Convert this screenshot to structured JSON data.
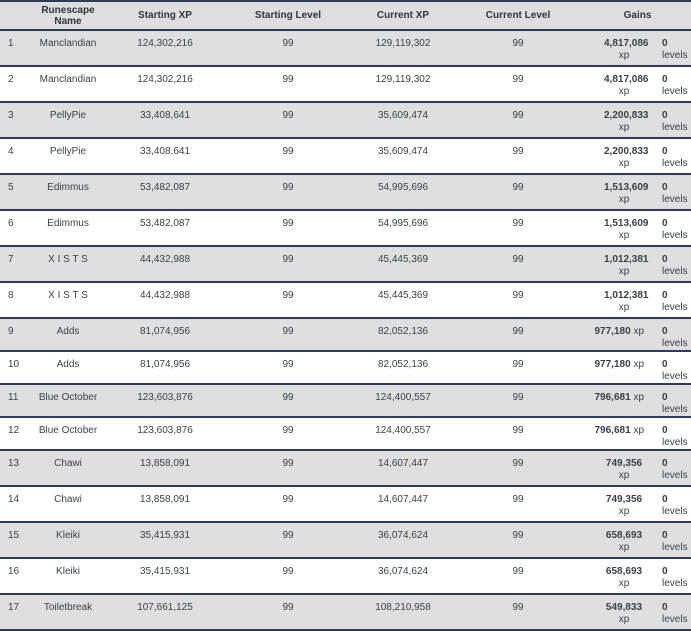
{
  "headers": [
    "",
    "Runescape Name",
    "Starting XP",
    "Starting Level",
    "Current XP",
    "Current Level",
    "Gains"
  ],
  "xp_unit": "xp",
  "levels_unit": "levels",
  "rows": [
    {
      "rank": "1",
      "name": "Manclandian",
      "start_xp": "124,302,216",
      "start_level": "99",
      "current_xp": "129,119,302",
      "current_level": "99",
      "gain_xp": "4,817,086",
      "gain_levels": "0"
    },
    {
      "rank": "2",
      "name": "Manclandian",
      "start_xp": "124,302,216",
      "start_level": "99",
      "current_xp": "129,119,302",
      "current_level": "99",
      "gain_xp": "4,817,086",
      "gain_levels": "0"
    },
    {
      "rank": "3",
      "name": "PellyPie",
      "start_xp": "33,408,641",
      "start_level": "99",
      "current_xp": "35,609,474",
      "current_level": "99",
      "gain_xp": "2,200,833",
      "gain_levels": "0"
    },
    {
      "rank": "4",
      "name": "PellyPie",
      "start_xp": "33,408,641",
      "start_level": "99",
      "current_xp": "35,609,474",
      "current_level": "99",
      "gain_xp": "2,200,833",
      "gain_levels": "0"
    },
    {
      "rank": "5",
      "name": "Edimmus",
      "start_xp": "53,482,087",
      "start_level": "99",
      "current_xp": "54,995,696",
      "current_level": "99",
      "gain_xp": "1,513,609",
      "gain_levels": "0"
    },
    {
      "rank": "6",
      "name": "Edimmus",
      "start_xp": "53,482,087",
      "start_level": "99",
      "current_xp": "54,995,696",
      "current_level": "99",
      "gain_xp": "1,513,609",
      "gain_levels": "0"
    },
    {
      "rank": "7",
      "name": "X I S T S",
      "start_xp": "44,432,988",
      "start_level": "99",
      "current_xp": "45,445,369",
      "current_level": "99",
      "gain_xp": "1,012,381",
      "gain_levels": "0"
    },
    {
      "rank": "8",
      "name": "X I S T S",
      "start_xp": "44,432,988",
      "start_level": "99",
      "current_xp": "45,445,369",
      "current_level": "99",
      "gain_xp": "1,012,381",
      "gain_levels": "0"
    },
    {
      "rank": "9",
      "name": "Adds",
      "start_xp": "81,074,956",
      "start_level": "99",
      "current_xp": "82,052,136",
      "current_level": "99",
      "gain_xp": "977,180",
      "gain_levels": "0"
    },
    {
      "rank": "10",
      "name": "Adds",
      "start_xp": "81,074,956",
      "start_level": "99",
      "current_xp": "82,052,136",
      "current_level": "99",
      "gain_xp": "977,180",
      "gain_levels": "0"
    },
    {
      "rank": "11",
      "name": "Blue October",
      "start_xp": "123,603,876",
      "start_level": "99",
      "current_xp": "124,400,557",
      "current_level": "99",
      "gain_xp": "796,681",
      "gain_levels": "0"
    },
    {
      "rank": "12",
      "name": "Blue October",
      "start_xp": "123,603,876",
      "start_level": "99",
      "current_xp": "124,400,557",
      "current_level": "99",
      "gain_xp": "796,681",
      "gain_levels": "0"
    },
    {
      "rank": "13",
      "name": "Chawi",
      "start_xp": "13,858,091",
      "start_level": "99",
      "current_xp": "14,607,447",
      "current_level": "99",
      "gain_xp": "749,356",
      "gain_levels": "0"
    },
    {
      "rank": "14",
      "name": "Chawi",
      "start_xp": "13,858,091",
      "start_level": "99",
      "current_xp": "14,607,447",
      "current_level": "99",
      "gain_xp": "749,356",
      "gain_levels": "0"
    },
    {
      "rank": "15",
      "name": "Kleiki",
      "start_xp": "35,415,931",
      "start_level": "99",
      "current_xp": "36,074,624",
      "current_level": "99",
      "gain_xp": "658,693",
      "gain_levels": "0"
    },
    {
      "rank": "16",
      "name": "Kleiki",
      "start_xp": "35,415,931",
      "start_level": "99",
      "current_xp": "36,074,624",
      "current_level": "99",
      "gain_xp": "658,693",
      "gain_levels": "0"
    },
    {
      "rank": "17",
      "name": "Toiletbreak",
      "start_xp": "107,661,125",
      "start_level": "99",
      "current_xp": "108,210,958",
      "current_level": "99",
      "gain_xp": "549,833",
      "gain_levels": "0"
    }
  ]
}
